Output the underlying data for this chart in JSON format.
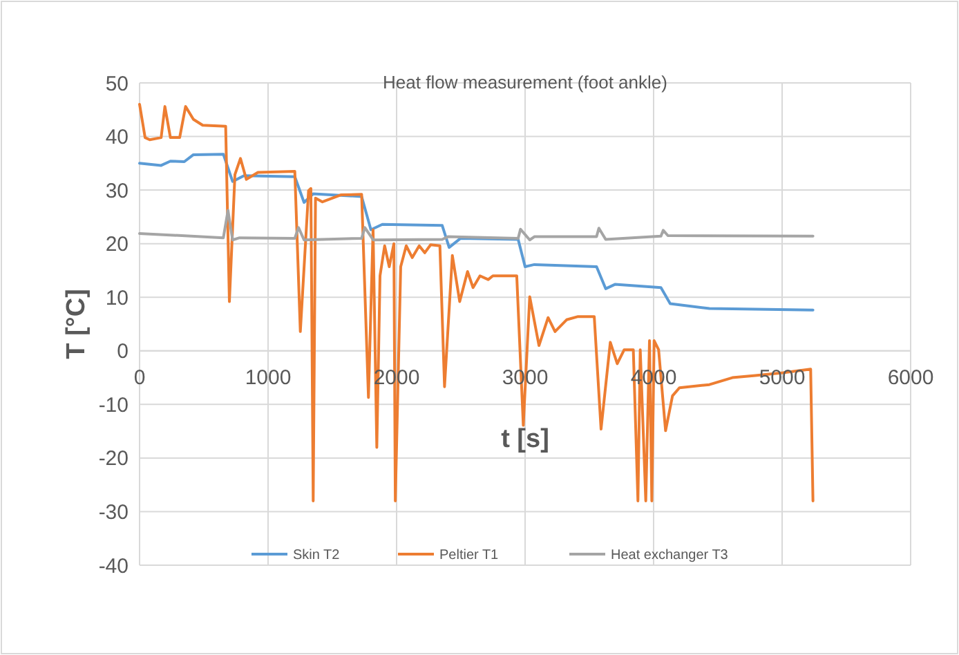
{
  "chart_data": {
    "type": "line",
    "title": "Heat flow measurement (foot ankle)",
    "xlabel": "t [s]",
    "ylabel": "T [°C]",
    "xlim": [
      0,
      6000
    ],
    "xticks": [
      0,
      1000,
      2000,
      3000,
      4000,
      5000,
      6000
    ],
    "ylim": [
      -40,
      50
    ],
    "yticks": [
      -40,
      -30,
      -20,
      -10,
      0,
      10,
      20,
      30,
      40,
      50
    ],
    "grid": true,
    "legend": "bottom",
    "marker": "none",
    "line_style": "solid",
    "series": [
      {
        "name": "Skin T2",
        "color": "#5b9bd5",
        "x": [
          0,
          168,
          240,
          348,
          419,
          652,
          724,
          813,
          1208,
          1280,
          1351,
          1728,
          1800,
          1889,
          2355,
          2409,
          2498,
          2946,
          3000,
          3072,
          3556,
          3627,
          3699,
          4057,
          4129,
          4434,
          5240
        ],
        "values": [
          35,
          34.6,
          35.4,
          35.3,
          36.6,
          36.7,
          31.6,
          32.7,
          32.5,
          27.7,
          29.3,
          28.8,
          22.6,
          23.6,
          23.4,
          19.3,
          21,
          20.8,
          15.7,
          16.1,
          15.7,
          11.6,
          12.4,
          11.8,
          8.8,
          7.9,
          7.6
        ]
      },
      {
        "name": "Peltier T1",
        "color": "#ed7d31",
        "x": [
          0,
          43,
          79,
          168,
          197,
          240,
          312,
          358,
          419,
          491,
          670,
          699,
          742,
          785,
          831,
          921,
          1208,
          1251,
          1315,
          1333,
          1351,
          1369,
          1423,
          1566,
          1728,
          1781,
          1817,
          1846,
          1871,
          1907,
          1943,
          1979,
          1990,
          2032,
          2075,
          2122,
          2176,
          2219,
          2265,
          2337,
          2373,
          2434,
          2491,
          2552,
          2595,
          2649,
          2713,
          2749,
          2935,
          2986,
          3036,
          3108,
          3179,
          3233,
          3323,
          3412,
          3538,
          3591,
          3663,
          3717,
          3771,
          3842,
          3878,
          3896,
          3939,
          3968,
          3986,
          4004,
          4039,
          4093,
          4147,
          4201,
          4434,
          4613,
          4792,
          5007,
          5222,
          5240
        ],
        "values": [
          46,
          39.8,
          39.4,
          39.8,
          45.6,
          39.8,
          39.8,
          45.6,
          43.2,
          42.1,
          41.9,
          9.2,
          32.9,
          35.9,
          32,
          33.3,
          33.5,
          3.6,
          29.9,
          30.3,
          -28,
          28.5,
          27.8,
          29.1,
          29.2,
          -8.7,
          22.6,
          -18,
          14,
          19.6,
          15.7,
          20,
          -28,
          15.7,
          19.6,
          17.4,
          19.6,
          18.3,
          19.8,
          19.6,
          -6.7,
          17.8,
          9.2,
          14.8,
          11.8,
          14,
          13.3,
          14,
          14,
          -13.9,
          10.1,
          1,
          6.2,
          3.6,
          5.8,
          6.4,
          6.4,
          -14.6,
          1.6,
          -2.4,
          0.2,
          0.2,
          -28,
          0.2,
          -28,
          1.9,
          -28,
          1.9,
          0.2,
          -14.9,
          -8.4,
          -6.9,
          -6.3,
          -5,
          -4.6,
          -4.1,
          -3.4,
          -28
        ]
      },
      {
        "name": "Heat exchanger T3",
        "color": "#a5a5a5",
        "x": [
          0,
          652,
          688,
          724,
          778,
          1208,
          1237,
          1280,
          1728,
          1753,
          1818,
          2355,
          2400,
          2946,
          2964,
          3036,
          3072,
          3556,
          3574,
          3627,
          4057,
          4075,
          4111,
          5240
        ],
        "values": [
          21.9,
          21.1,
          26.2,
          20.7,
          21.1,
          21,
          23,
          20.7,
          21,
          23,
          20.7,
          20.8,
          21.3,
          21,
          22.7,
          20.7,
          21.3,
          21.3,
          22.9,
          20.8,
          21.4,
          22.5,
          21.5,
          21.4
        ]
      }
    ]
  }
}
